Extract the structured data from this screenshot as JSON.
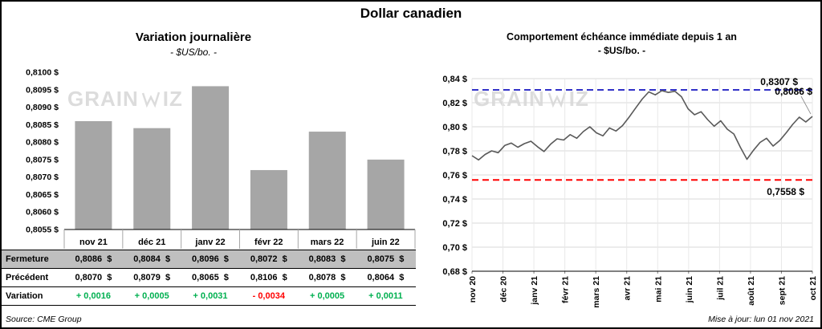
{
  "title": "Dollar canadien",
  "watermark": {
    "part1": "GRAIN",
    "part2": "IZ"
  },
  "footer": {
    "source": "Source: CME Group",
    "updated": "Mise à jour: lun 01 nov 2021"
  },
  "colors": {
    "bar": "#A6A6A6",
    "line": "#595959",
    "high_blue": "#3232C8",
    "low_red": "#FF0000",
    "positive_green": "#00B050",
    "negative_red": "#FF0000",
    "table_shaded": "#BFBFBF",
    "gridline": "#D9D9D9",
    "watermark": "#DCDCDC"
  },
  "chart_data": [
    {
      "type": "bar",
      "title": "Variation journalière",
      "subtitle": "- $US/bo. -",
      "categories": [
        "nov 21",
        "déc 21",
        "janv 22",
        "févr 22",
        "mars 22",
        "juin 22"
      ],
      "values": [
        0.8086,
        0.8084,
        0.8096,
        0.8072,
        0.8083,
        0.8075
      ],
      "ylim": [
        0.8055,
        0.81
      ],
      "ytick_labels": [
        "0,8055 $",
        "0,8060 $",
        "0,8065 $",
        "0,8070 $",
        "0,8075 $",
        "0,8080 $",
        "0,8085 $",
        "0,8090 $",
        "0,8095 $",
        "0,8100 $"
      ],
      "grid": false,
      "legend": "none",
      "table": {
        "rows": [
          {
            "label": "Fermeture",
            "values": [
              "0,8086  $",
              "0,8084  $",
              "0,8096  $",
              "0,8072  $",
              "0,8083  $",
              "0,8075  $"
            ],
            "shaded": true
          },
          {
            "label": "Précédent",
            "values": [
              "0,8070  $",
              "0,8079  $",
              "0,8065  $",
              "0,8106  $",
              "0,8078  $",
              "0,8064  $"
            ],
            "shaded": false
          },
          {
            "label": "Variation",
            "values": [
              "+ 0,0016",
              "+ 0,0005",
              "+ 0,0031",
              "- 0,0034",
              "+ 0,0005",
              "+ 0,0011"
            ],
            "value_colors": [
              "#00B050",
              "#00B050",
              "#00B050",
              "#FF0000",
              "#00B050",
              "#00B050"
            ],
            "shaded": false
          }
        ]
      }
    },
    {
      "type": "line",
      "title": "Comportement échéance immédiate depuis 1 an",
      "subtitle": "- $US/bo. -",
      "x_labels": [
        "nov 20",
        "déc 20",
        "janv 21",
        "févr 21",
        "mars 21",
        "avr 21",
        "mai 21",
        "juin 21",
        "juil 21",
        "août 21",
        "sept 21",
        "oct 21"
      ],
      "ylim": [
        0.68,
        0.84
      ],
      "ytick_labels": [
        "0,68 $",
        "0,70 $",
        "0,72 $",
        "0,74 $",
        "0,76 $",
        "0,78 $",
        "0,80 $",
        "0,82 $",
        "0,84 $"
      ],
      "values": [
        0.776,
        0.7725,
        0.777,
        0.78,
        0.7785,
        0.7845,
        0.7865,
        0.783,
        0.786,
        0.788,
        0.7835,
        0.7795,
        0.7855,
        0.79,
        0.789,
        0.7935,
        0.7905,
        0.796,
        0.8,
        0.795,
        0.7925,
        0.799,
        0.7965,
        0.801,
        0.808,
        0.8155,
        0.823,
        0.829,
        0.8265,
        0.83,
        0.8285,
        0.8295,
        0.825,
        0.815,
        0.81,
        0.8125,
        0.806,
        0.8005,
        0.805,
        0.798,
        0.794,
        0.783,
        0.773,
        0.7805,
        0.787,
        0.7905,
        0.784,
        0.7885,
        0.795,
        0.802,
        0.808,
        0.804,
        0.8086
      ],
      "grid": true,
      "legend": "none",
      "annotations": {
        "high": {
          "value": 0.8307,
          "label": "0,8307 $",
          "color": "#3232C8",
          "style": "dashed"
        },
        "low": {
          "value": 0.7558,
          "label": "0,7558 $",
          "color": "#FF0000",
          "style": "dashed"
        },
        "last": {
          "value": 0.8086,
          "label": "0,8086 $",
          "color": "#000000"
        }
      }
    }
  ]
}
